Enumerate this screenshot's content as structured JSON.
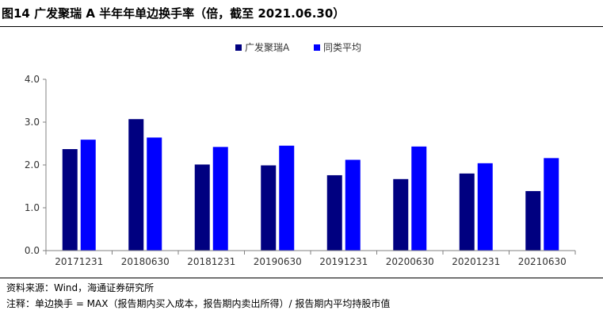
{
  "title": "图14 广发聚瑞 A 半年年单边换手率（倍，截至 2021.06.30）",
  "source": "资料来源：Wind，海通证券研究所",
  "note": "注释：单边换手 = MAX（报告期内买入成本，报告期内卖出所得）/ 报告期内平均持股市值",
  "colors": {
    "series_a": "#000080",
    "series_b": "#0000FF",
    "axis": "#808080"
  },
  "chart_data": {
    "type": "bar",
    "categories": [
      "20171231",
      "20180630",
      "20181231",
      "20190630",
      "20191231",
      "20200630",
      "20201231",
      "20210630"
    ],
    "series": [
      {
        "name": "广发聚瑞A",
        "values": [
          2.37,
          3.07,
          2.01,
          1.99,
          1.76,
          1.67,
          1.8,
          1.39
        ]
      },
      {
        "name": "同类平均",
        "values": [
          2.59,
          2.64,
          2.42,
          2.45,
          2.12,
          2.43,
          2.04,
          2.16
        ]
      }
    ],
    "ylim": [
      0,
      4.0
    ],
    "yticks": [
      "0.0",
      "1.0",
      "2.0",
      "3.0",
      "4.0"
    ],
    "legend_position": "top-center",
    "grid": false
  }
}
